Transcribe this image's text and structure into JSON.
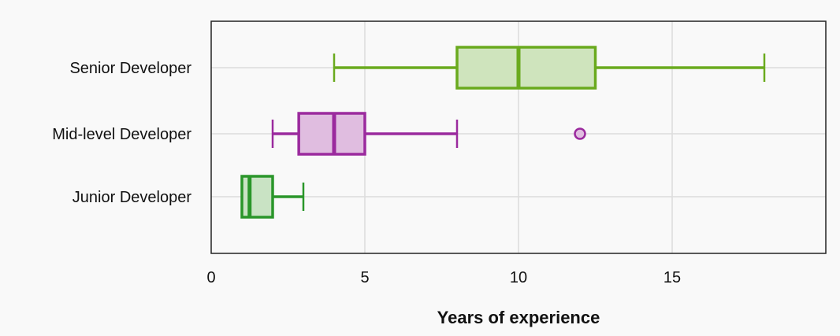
{
  "chart_data": {
    "type": "boxplot",
    "orientation": "horizontal",
    "xlabel": "Years of experience",
    "xlim": [
      0,
      20
    ],
    "xticks": [
      0,
      5,
      10,
      15
    ],
    "grid": true,
    "categories": [
      "Senior Developer",
      "Mid-level Developer",
      "Junior Developer"
    ],
    "series": [
      {
        "category": "Senior Developer",
        "min": 4,
        "q1": 8,
        "median": 10,
        "q3": 12.5,
        "max": 18,
        "outliers": [],
        "color": "#6aaa1e",
        "fill": "#cfe4bd"
      },
      {
        "category": "Mid-level Developer",
        "min": 2,
        "q1": 2.85,
        "median": 4,
        "q3": 5,
        "max": 8,
        "outliers": [
          12
        ],
        "color": "#9b2a9e",
        "fill": "#e0bde0"
      },
      {
        "category": "Junior Developer",
        "min": 1,
        "q1": 1,
        "median": 1.25,
        "q3": 2,
        "max": 3,
        "outliers": [],
        "color": "#2a962a",
        "fill": "#c9e3c4"
      }
    ]
  }
}
